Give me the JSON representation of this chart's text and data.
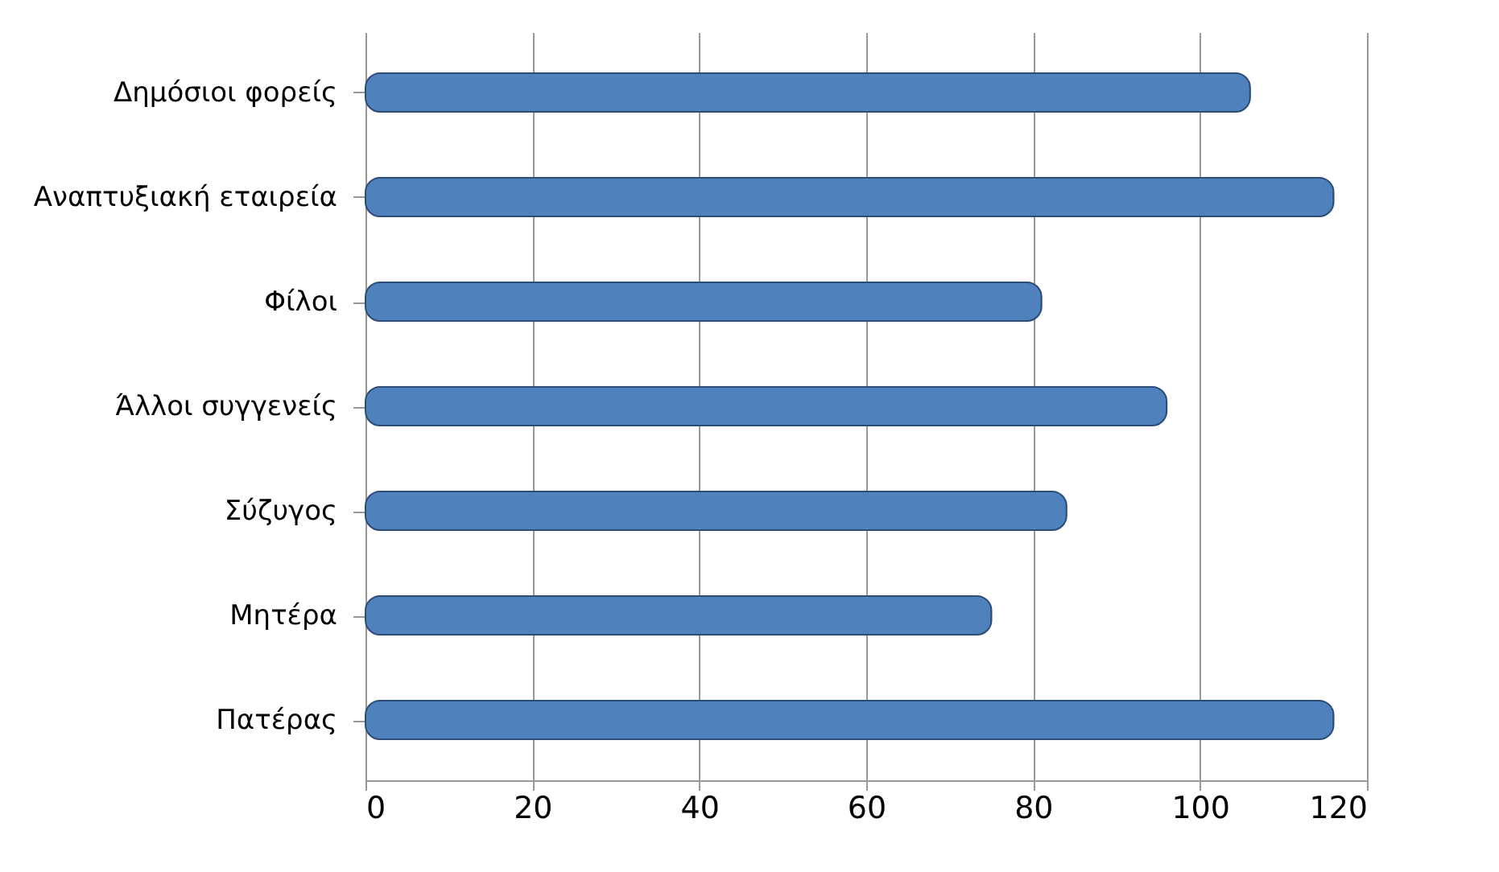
{
  "chart_data": {
    "type": "bar",
    "orientation": "horizontal",
    "categories": [
      "Δημόσιοι φορείς",
      "Αναπτυξιακή εταιρεία",
      "Φίλοι",
      "Άλλοι συγγενείς",
      "Σύζυγος",
      "Μητέρα",
      "Πατέρας"
    ],
    "values": [
      106,
      116,
      81,
      96,
      84,
      75,
      116
    ],
    "color": "#4f81bd",
    "xlim": [
      0,
      120
    ],
    "xticks": [
      0,
      20,
      40,
      60,
      80,
      100,
      120
    ],
    "grid": "x"
  }
}
